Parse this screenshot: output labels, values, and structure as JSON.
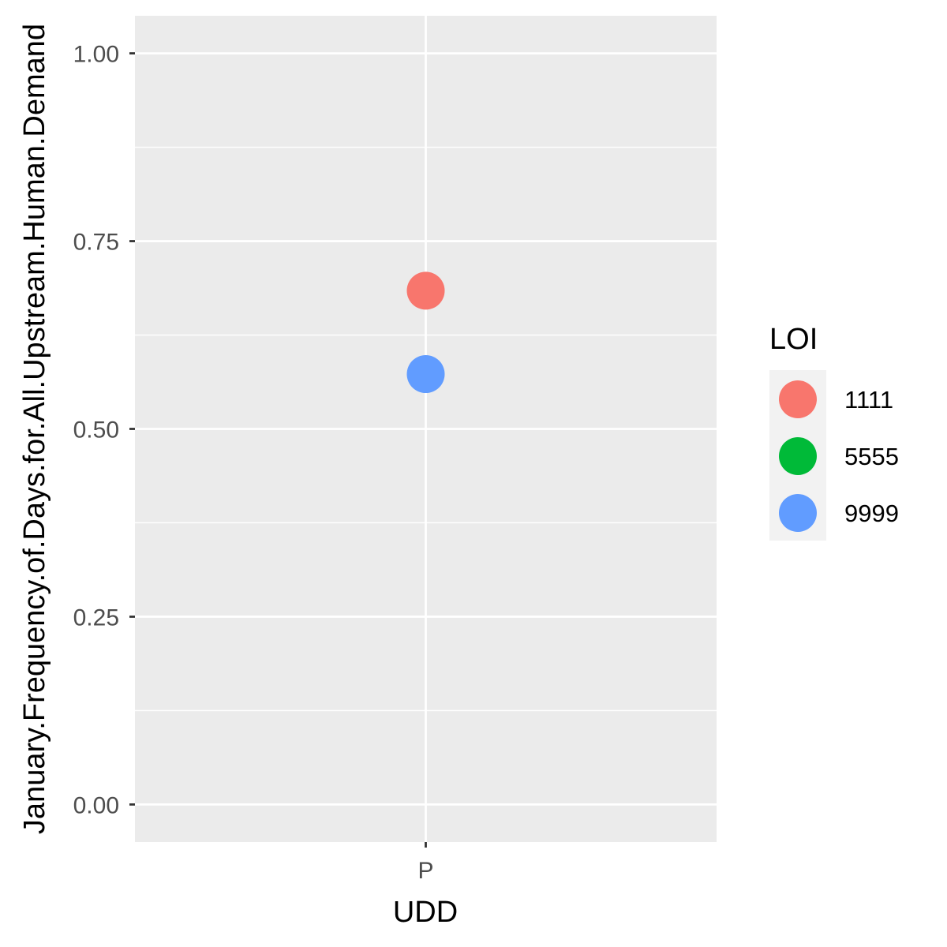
{
  "chart_data": {
    "type": "scatter",
    "xlabel": "UDD",
    "ylabel": "January.Frequency.of.Days.for.All.Upstream.Human.Demand",
    "categories": [
      "P"
    ],
    "ylim": [
      -0.05,
      1.05
    ],
    "y_ticks": [
      "0.00",
      "0.25",
      "0.50",
      "0.75",
      "1.00"
    ],
    "grid": true,
    "legend": {
      "title": "LOI",
      "position": "right",
      "entries": [
        {
          "label": "1111",
          "color": "#F8766D"
        },
        {
          "label": "5555",
          "color": "#00BA38"
        },
        {
          "label": "9999",
          "color": "#619CFF"
        }
      ]
    },
    "series": [
      {
        "name": "1111",
        "color": "#F8766D",
        "points": [
          {
            "x": "P",
            "y": 0.684
          }
        ]
      },
      {
        "name": "9999",
        "color": "#619CFF",
        "points": [
          {
            "x": "P",
            "y": 0.573
          }
        ]
      }
    ],
    "panel_color": "#EBEBEB",
    "grid_color": "#FFFFFF"
  }
}
